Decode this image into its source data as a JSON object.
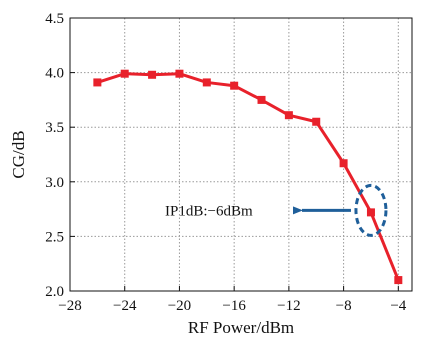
{
  "chart_data": {
    "type": "line",
    "title": "",
    "xlabel": "RF Power/dBm",
    "ylabel": "CG/dB",
    "xlim": [
      -28,
      -3
    ],
    "ylim": [
      2.0,
      4.5
    ],
    "x_ticks": [
      -28,
      -24,
      -20,
      -16,
      -12,
      -8,
      -4
    ],
    "x_tick_labels": [
      "−28",
      "−24",
      "−20",
      "−16",
      "−12",
      "−8",
      "−4"
    ],
    "y_ticks": [
      2.0,
      2.5,
      3.0,
      3.5,
      4.0,
      4.5
    ],
    "y_tick_labels": [
      "2.0",
      "2.5",
      "3.0",
      "3.5",
      "4.0",
      "4.5"
    ],
    "grid": true,
    "series": [
      {
        "color": "#e8212b",
        "marker": "square",
        "x": [
          -26,
          -24,
          -22,
          -20,
          -18,
          -16,
          -14,
          -12,
          -10,
          -8,
          -6,
          -4
        ],
        "y": [
          3.91,
          3.99,
          3.98,
          3.99,
          3.91,
          3.88,
          3.75,
          3.61,
          3.55,
          3.17,
          2.72,
          2.1
        ]
      }
    ],
    "annotations": [
      {
        "text": "IP1dB:−6dBm",
        "point_x": -6,
        "point_y": 2.72,
        "highlight": "dashed-ellipse",
        "arrow": "pointing-left-to-text",
        "color": "#1f5f9a"
      }
    ]
  }
}
